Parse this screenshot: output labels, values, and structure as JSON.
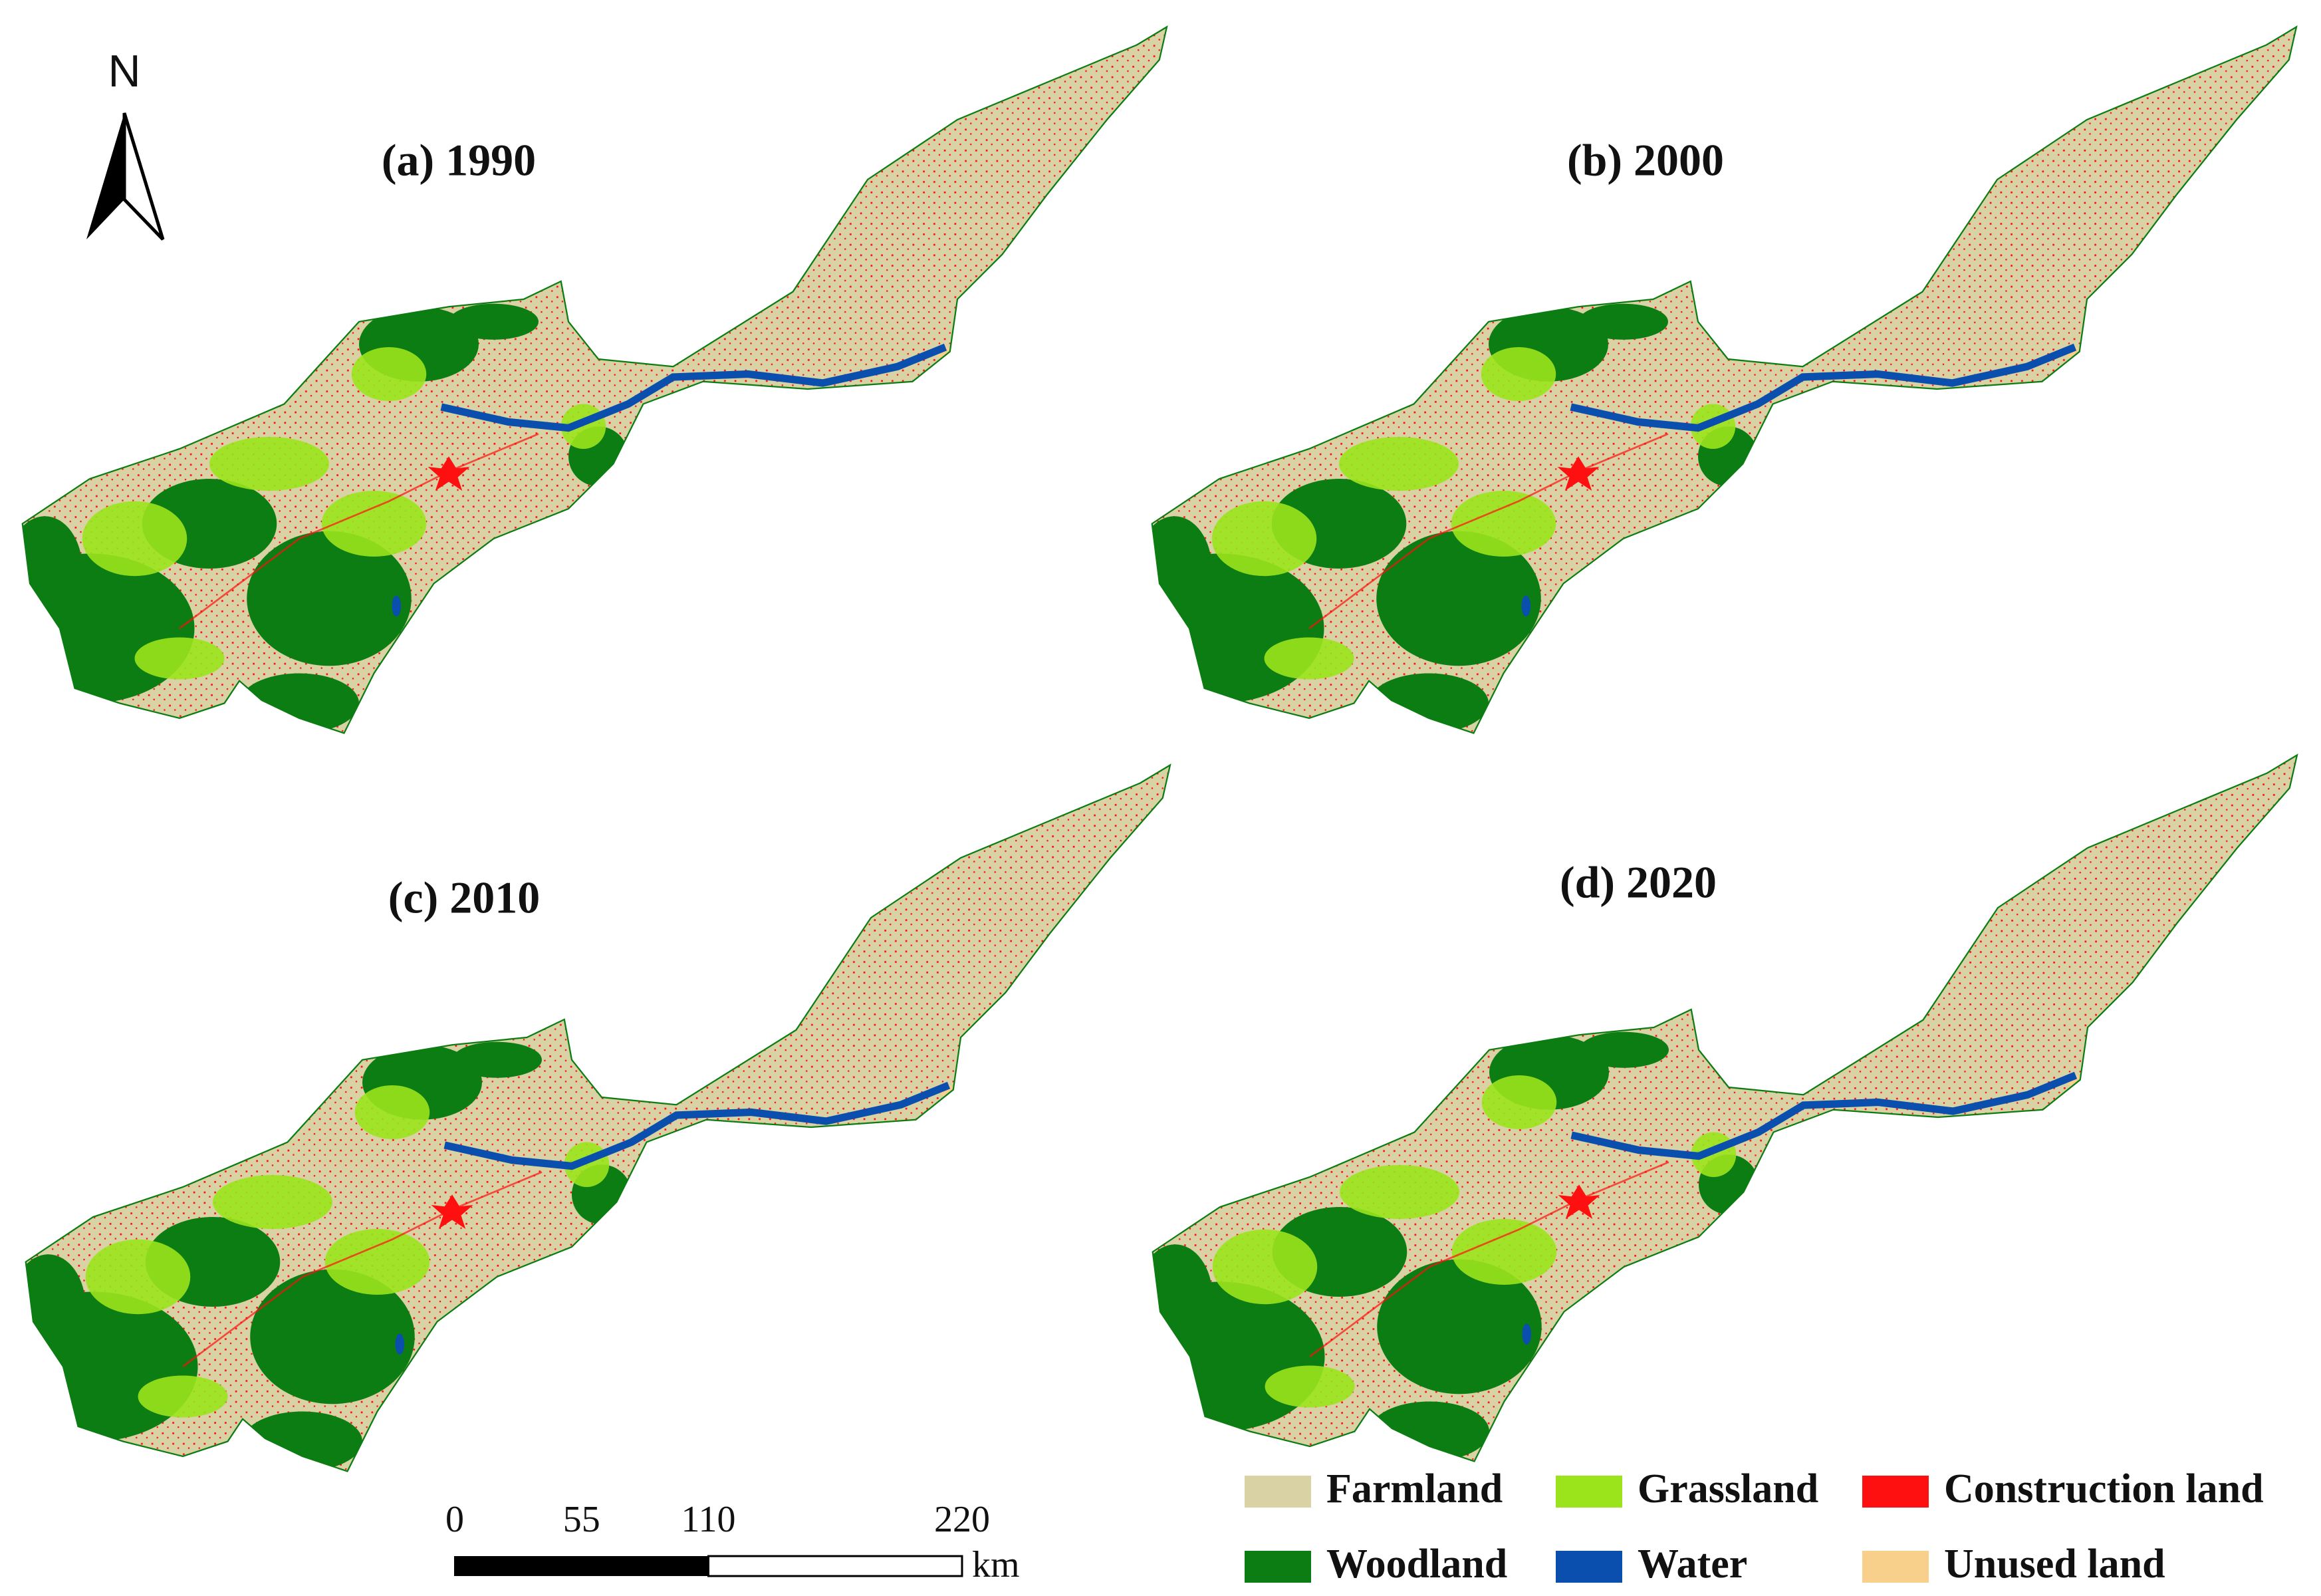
{
  "panels": [
    {
      "title": "(a) 1990"
    },
    {
      "title": "(b) 2000"
    },
    {
      "title": "(c) 2010"
    },
    {
      "title": "(d) 2020"
    }
  ],
  "north_arrow": {
    "label": "N"
  },
  "scale_bar": {
    "ticks": [
      0,
      55,
      110,
      220
    ],
    "unit": "km"
  },
  "legend": [
    {
      "name": "Farmland",
      "color": "#d8d2a4"
    },
    {
      "name": "Grassland",
      "color": "#9be41c"
    },
    {
      "name": "Construction land",
      "color": "#ff1010"
    },
    {
      "name": "Woodland",
      "color": "#0b7d12"
    },
    {
      "name": "Water",
      "color": "#0b4fae"
    },
    {
      "name": "Unused land",
      "color": "#f8d08c"
    }
  ]
}
